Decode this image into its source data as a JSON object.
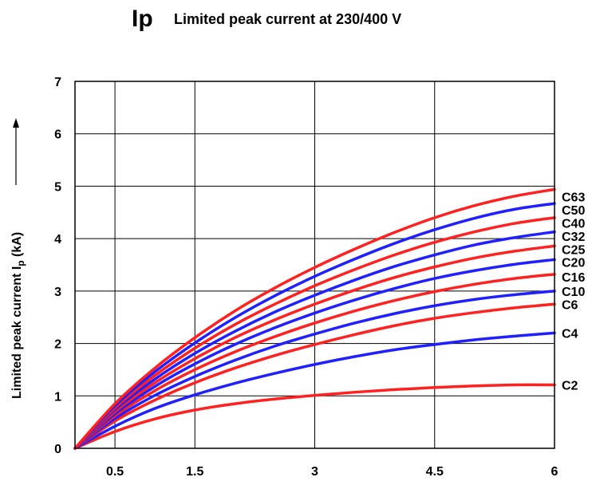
{
  "chart_data": {
    "type": "line",
    "title": "Ip",
    "subtitle": "Limited peak current at 230/400 V",
    "ylabel": "Limited peak current Ip (kA)",
    "xlabel": "",
    "xlim": [
      0,
      6
    ],
    "ylim": [
      0,
      7
    ],
    "xticks": [
      0.5,
      1.5,
      3,
      4.5,
      6
    ],
    "yticks": [
      0,
      1,
      2,
      3,
      4,
      5,
      6,
      7
    ],
    "grid": true,
    "colors": {
      "red": "#ff2020",
      "blue": "#2020ff"
    },
    "x": [
      0,
      0.5,
      1,
      1.5,
      2,
      2.5,
      3,
      3.5,
      4,
      4.5,
      5,
      5.5,
      6
    ],
    "series": [
      {
        "name": "C2",
        "color": "red",
        "values": [
          0,
          0.32,
          0.56,
          0.73,
          0.85,
          0.94,
          1.01,
          1.07,
          1.12,
          1.16,
          1.19,
          1.21,
          1.21
        ]
      },
      {
        "name": "C4",
        "color": "blue",
        "values": [
          0,
          0.42,
          0.76,
          1.02,
          1.24,
          1.43,
          1.6,
          1.75,
          1.88,
          1.98,
          2.07,
          2.14,
          2.2
        ]
      },
      {
        "name": "C6",
        "color": "red",
        "values": [
          0,
          0.52,
          0.92,
          1.25,
          1.53,
          1.77,
          1.98,
          2.17,
          2.34,
          2.48,
          2.59,
          2.68,
          2.75
        ]
      },
      {
        "name": "C10",
        "color": "blue",
        "values": [
          0,
          0.57,
          1.01,
          1.37,
          1.68,
          1.95,
          2.18,
          2.39,
          2.57,
          2.72,
          2.84,
          2.93,
          3.0
        ]
      },
      {
        "name": "C16",
        "color": "red",
        "values": [
          0,
          0.62,
          1.1,
          1.5,
          1.84,
          2.13,
          2.39,
          2.62,
          2.82,
          2.99,
          3.13,
          3.24,
          3.32
        ]
      },
      {
        "name": "C20",
        "color": "blue",
        "values": [
          0,
          0.66,
          1.18,
          1.61,
          1.98,
          2.3,
          2.58,
          2.83,
          3.05,
          3.24,
          3.39,
          3.51,
          3.6
        ]
      },
      {
        "name": "C25",
        "color": "red",
        "values": [
          0,
          0.7,
          1.25,
          1.71,
          2.11,
          2.45,
          2.75,
          3.02,
          3.26,
          3.46,
          3.63,
          3.76,
          3.86
        ]
      },
      {
        "name": "C32",
        "color": "blue",
        "values": [
          0,
          0.74,
          1.32,
          1.81,
          2.23,
          2.6,
          2.92,
          3.21,
          3.47,
          3.69,
          3.88,
          4.02,
          4.13
        ]
      },
      {
        "name": "C40",
        "color": "red",
        "values": [
          0,
          0.77,
          1.39,
          1.91,
          2.36,
          2.75,
          3.1,
          3.41,
          3.69,
          3.93,
          4.13,
          4.29,
          4.4
        ]
      },
      {
        "name": "C50",
        "color": "blue",
        "values": [
          0,
          0.81,
          1.46,
          2.01,
          2.49,
          2.91,
          3.28,
          3.61,
          3.91,
          4.17,
          4.39,
          4.56,
          4.67
        ]
      },
      {
        "name": "C63",
        "color": "red",
        "values": [
          0,
          0.85,
          1.53,
          2.11,
          2.62,
          3.06,
          3.45,
          3.8,
          4.12,
          4.4,
          4.63,
          4.81,
          4.94
        ]
      }
    ],
    "series_label_y": [
      1.21,
      2.2,
      2.75,
      3.0,
      3.27,
      3.55,
      3.8,
      4.05,
      4.3,
      4.55,
      4.8
    ]
  }
}
